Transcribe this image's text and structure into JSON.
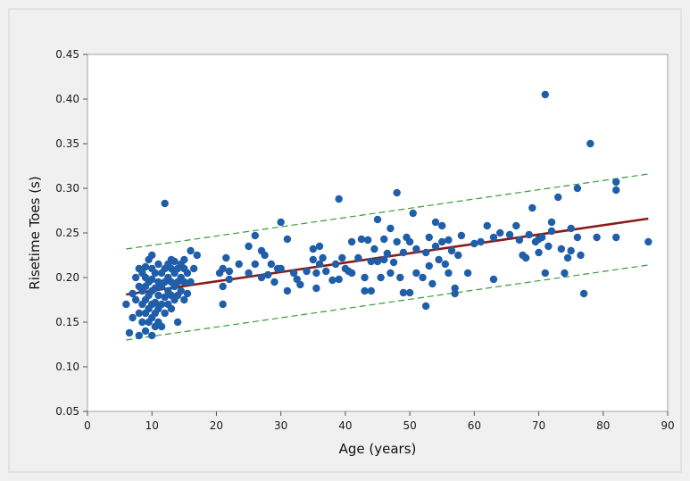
{
  "chart_data": {
    "type": "scatter",
    "title": "",
    "xlabel": "Age (years)",
    "ylabel": "Risetime Toes (s)",
    "xlim": [
      0,
      90
    ],
    "ylim": [
      0.05,
      0.45
    ],
    "x_ticks": [
      "0",
      "10",
      "20",
      "30",
      "40",
      "50",
      "60",
      "70",
      "80",
      "90"
    ],
    "y_ticks": [
      "0.05",
      "0.10",
      "0.15",
      "0.20",
      "0.25",
      "0.30",
      "0.35",
      "0.40",
      "0.45"
    ],
    "grid": false,
    "legend": "none",
    "colors": {
      "points": "#1f5ea8",
      "fit_line": "#8b1a1a",
      "prediction_band": "#3a9a3a",
      "plot_background": "#ffffff",
      "figure_background": "#f0f0f0"
    },
    "points": [
      [
        6.0,
        0.17
      ],
      [
        6.5,
        0.138
      ],
      [
        7.0,
        0.155
      ],
      [
        7.0,
        0.182
      ],
      [
        7.5,
        0.175
      ],
      [
        7.5,
        0.2
      ],
      [
        8.0,
        0.135
      ],
      [
        8.0,
        0.16
      ],
      [
        8.0,
        0.19
      ],
      [
        8.0,
        0.21
      ],
      [
        8.5,
        0.15
      ],
      [
        8.5,
        0.17
      ],
      [
        8.5,
        0.185
      ],
      [
        8.5,
        0.205
      ],
      [
        9.0,
        0.14
      ],
      [
        9.0,
        0.16
      ],
      [
        9.0,
        0.175
      ],
      [
        9.0,
        0.19
      ],
      [
        9.0,
        0.2
      ],
      [
        9.0,
        0.212
      ],
      [
        9.5,
        0.15
      ],
      [
        9.5,
        0.165
      ],
      [
        9.5,
        0.18
      ],
      [
        9.5,
        0.195
      ],
      [
        9.5,
        0.22
      ],
      [
        10.0,
        0.135
      ],
      [
        10.0,
        0.155
      ],
      [
        10.0,
        0.17
      ],
      [
        10.0,
        0.185
      ],
      [
        10.0,
        0.198
      ],
      [
        10.0,
        0.21
      ],
      [
        10.0,
        0.225
      ],
      [
        10.5,
        0.145
      ],
      [
        10.5,
        0.16
      ],
      [
        10.5,
        0.172
      ],
      [
        10.5,
        0.188
      ],
      [
        10.5,
        0.205
      ],
      [
        11.0,
        0.15
      ],
      [
        11.0,
        0.165
      ],
      [
        11.0,
        0.18
      ],
      [
        11.0,
        0.195
      ],
      [
        11.0,
        0.215
      ],
      [
        11.5,
        0.145
      ],
      [
        11.5,
        0.17
      ],
      [
        11.5,
        0.19
      ],
      [
        11.5,
        0.205
      ],
      [
        12.0,
        0.283
      ],
      [
        12.0,
        0.16
      ],
      [
        12.0,
        0.178
      ],
      [
        12.0,
        0.195
      ],
      [
        12.0,
        0.21
      ],
      [
        12.5,
        0.17
      ],
      [
        12.5,
        0.185
      ],
      [
        12.5,
        0.2
      ],
      [
        12.5,
        0.215
      ],
      [
        13.0,
        0.165
      ],
      [
        13.0,
        0.18
      ],
      [
        13.0,
        0.195
      ],
      [
        13.0,
        0.21
      ],
      [
        13.0,
        0.22
      ],
      [
        13.5,
        0.175
      ],
      [
        13.5,
        0.19
      ],
      [
        13.5,
        0.205
      ],
      [
        13.5,
        0.218
      ],
      [
        14.0,
        0.18
      ],
      [
        14.0,
        0.195
      ],
      [
        14.0,
        0.21
      ],
      [
        14.0,
        0.15
      ],
      [
        14.5,
        0.185
      ],
      [
        14.5,
        0.2
      ],
      [
        14.5,
        0.215
      ],
      [
        15.0,
        0.175
      ],
      [
        15.0,
        0.195
      ],
      [
        15.0,
        0.21
      ],
      [
        15.0,
        0.22
      ],
      [
        15.5,
        0.182
      ],
      [
        15.5,
        0.205
      ],
      [
        16.0,
        0.195
      ],
      [
        16.0,
        0.23
      ],
      [
        16.5,
        0.21
      ],
      [
        17.0,
        0.225
      ],
      [
        20.5,
        0.205
      ],
      [
        21.0,
        0.17
      ],
      [
        21.0,
        0.19
      ],
      [
        21.0,
        0.21
      ],
      [
        21.5,
        0.222
      ],
      [
        22.0,
        0.198
      ],
      [
        22.0,
        0.207
      ],
      [
        23.5,
        0.215
      ],
      [
        25.0,
        0.205
      ],
      [
        25.0,
        0.235
      ],
      [
        26.0,
        0.215
      ],
      [
        26.0,
        0.247
      ],
      [
        27.0,
        0.2
      ],
      [
        27.0,
        0.23
      ],
      [
        27.5,
        0.225
      ],
      [
        28.0,
        0.203
      ],
      [
        28.5,
        0.215
      ],
      [
        29.0,
        0.195
      ],
      [
        29.5,
        0.21
      ],
      [
        30.0,
        0.262
      ],
      [
        30.0,
        0.21
      ],
      [
        31.0,
        0.243
      ],
      [
        31.0,
        0.185
      ],
      [
        32.0,
        0.205
      ],
      [
        32.5,
        0.198
      ],
      [
        33.0,
        0.192
      ],
      [
        34.0,
        0.207
      ],
      [
        35.0,
        0.22
      ],
      [
        35.0,
        0.232
      ],
      [
        35.5,
        0.205
      ],
      [
        35.5,
        0.188
      ],
      [
        36.0,
        0.235
      ],
      [
        36.0,
        0.215
      ],
      [
        36.5,
        0.222
      ],
      [
        37.0,
        0.207
      ],
      [
        38.0,
        0.197
      ],
      [
        38.5,
        0.215
      ],
      [
        39.0,
        0.288
      ],
      [
        39.0,
        0.198
      ],
      [
        39.5,
        0.222
      ],
      [
        40.0,
        0.21
      ],
      [
        40.5,
        0.207
      ],
      [
        41.0,
        0.24
      ],
      [
        41.0,
        0.205
      ],
      [
        42.0,
        0.222
      ],
      [
        42.5,
        0.243
      ],
      [
        43.0,
        0.185
      ],
      [
        43.0,
        0.2
      ],
      [
        43.5,
        0.242
      ],
      [
        44.0,
        0.218
      ],
      [
        44.0,
        0.185
      ],
      [
        44.5,
        0.232
      ],
      [
        45.0,
        0.265
      ],
      [
        45.0,
        0.218
      ],
      [
        45.5,
        0.2
      ],
      [
        46.0,
        0.22
      ],
      [
        46.0,
        0.243
      ],
      [
        46.5,
        0.227
      ],
      [
        47.0,
        0.255
      ],
      [
        47.0,
        0.205
      ],
      [
        47.5,
        0.217
      ],
      [
        48.0,
        0.295
      ],
      [
        48.0,
        0.24
      ],
      [
        48.5,
        0.2
      ],
      [
        49.0,
        0.228
      ],
      [
        49.0,
        0.183
      ],
      [
        49.5,
        0.245
      ],
      [
        50.0,
        0.24
      ],
      [
        50.0,
        0.183
      ],
      [
        50.5,
        0.272
      ],
      [
        51.0,
        0.232
      ],
      [
        51.0,
        0.205
      ],
      [
        52.0,
        0.2
      ],
      [
        52.5,
        0.168
      ],
      [
        52.5,
        0.228
      ],
      [
        53.0,
        0.245
      ],
      [
        53.0,
        0.213
      ],
      [
        53.5,
        0.193
      ],
      [
        54.0,
        0.262
      ],
      [
        54.0,
        0.235
      ],
      [
        54.5,
        0.22
      ],
      [
        55.0,
        0.258
      ],
      [
        55.0,
        0.24
      ],
      [
        55.5,
        0.215
      ],
      [
        56.0,
        0.242
      ],
      [
        56.0,
        0.205
      ],
      [
        56.5,
        0.23
      ],
      [
        57.0,
        0.188
      ],
      [
        57.0,
        0.182
      ],
      [
        57.5,
        0.225
      ],
      [
        58.0,
        0.247
      ],
      [
        59.0,
        0.205
      ],
      [
        60.0,
        0.238
      ],
      [
        61.0,
        0.24
      ],
      [
        62.0,
        0.258
      ],
      [
        63.0,
        0.198
      ],
      [
        63.0,
        0.245
      ],
      [
        64.0,
        0.25
      ],
      [
        65.5,
        0.248
      ],
      [
        66.5,
        0.258
      ],
      [
        67.0,
        0.242
      ],
      [
        67.5,
        0.225
      ],
      [
        68.0,
        0.222
      ],
      [
        68.5,
        0.248
      ],
      [
        69.0,
        0.278
      ],
      [
        69.5,
        0.24
      ],
      [
        70.0,
        0.228
      ],
      [
        70.0,
        0.243
      ],
      [
        70.5,
        0.245
      ],
      [
        71.0,
        0.405
      ],
      [
        71.0,
        0.205
      ],
      [
        71.5,
        0.235
      ],
      [
        72.0,
        0.262
      ],
      [
        72.0,
        0.252
      ],
      [
        73.0,
        0.29
      ],
      [
        73.5,
        0.232
      ],
      [
        74.0,
        0.205
      ],
      [
        74.5,
        0.222
      ],
      [
        75.0,
        0.255
      ],
      [
        75.0,
        0.23
      ],
      [
        76.0,
        0.3
      ],
      [
        76.0,
        0.245
      ],
      [
        76.5,
        0.225
      ],
      [
        77.0,
        0.182
      ],
      [
        78.0,
        0.35
      ],
      [
        79.0,
        0.245
      ],
      [
        82.0,
        0.307
      ],
      [
        82.0,
        0.298
      ],
      [
        82.0,
        0.245
      ],
      [
        87.0,
        0.24
      ]
    ],
    "fit_line": {
      "x": [
        6,
        87
      ],
      "y": [
        0.181,
        0.266
      ]
    },
    "prediction_band": {
      "upper": {
        "x": [
          6,
          87
        ],
        "y": [
          0.232,
          0.316
        ]
      },
      "lower": {
        "x": [
          6,
          87
        ],
        "y": [
          0.13,
          0.214
        ]
      }
    }
  }
}
